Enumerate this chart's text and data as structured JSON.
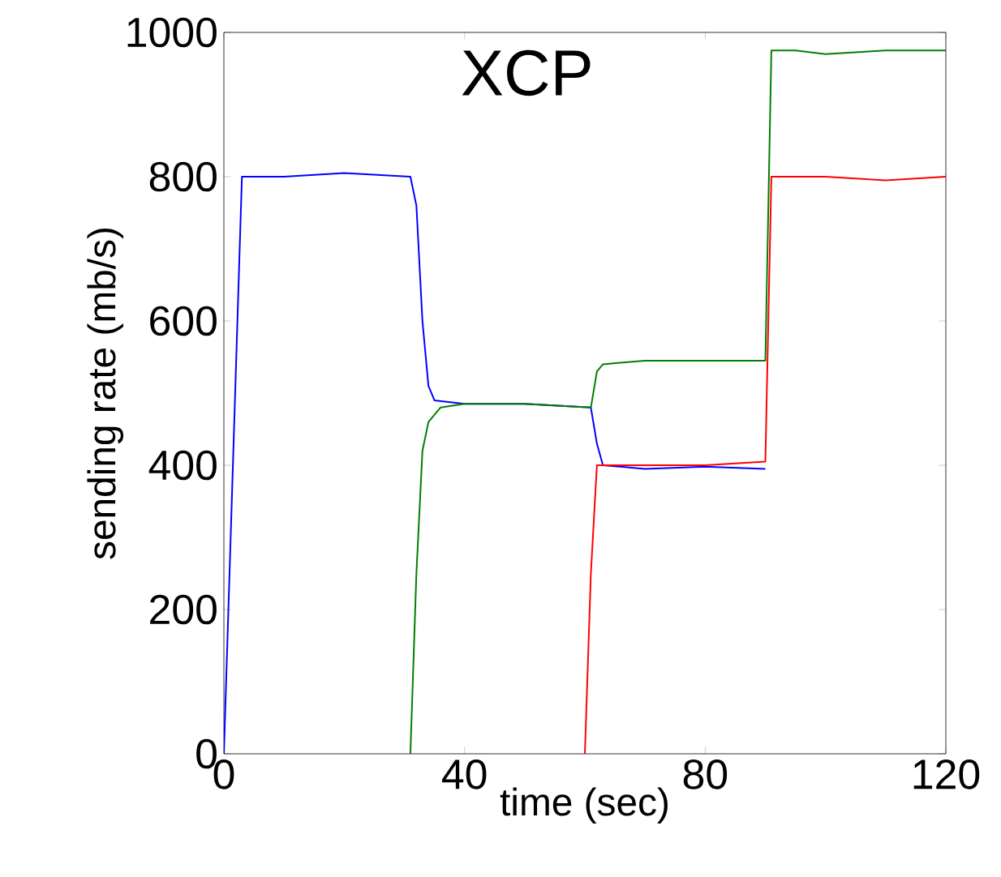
{
  "chart_data": {
    "type": "line",
    "title": "XCP",
    "xlabel": "time (sec)",
    "ylabel": "sending rate (mb/s)",
    "xlim": [
      0,
      120
    ],
    "ylim": [
      0,
      1000
    ],
    "xticks": [
      0,
      40,
      80,
      120
    ],
    "yticks": [
      0,
      200,
      400,
      600,
      800,
      1000
    ],
    "grid": false,
    "marker": "none",
    "line_style": "solid",
    "series": [
      {
        "color": "#0000ff",
        "x": [
          0,
          3,
          10,
          20,
          31,
          32,
          33,
          34,
          35,
          40,
          50,
          61,
          62,
          63,
          70,
          80,
          90
        ],
        "values": [
          0,
          800,
          800,
          805,
          800,
          760,
          600,
          510,
          490,
          485,
          485,
          480,
          430,
          400,
          395,
          398,
          395
        ]
      },
      {
        "color": "#007f00",
        "x": [
          31,
          32,
          33,
          34,
          36,
          40,
          50,
          61,
          62,
          63,
          70,
          80,
          90,
          91,
          95,
          100,
          110,
          120
        ],
        "values": [
          0,
          250,
          420,
          460,
          480,
          485,
          485,
          480,
          530,
          540,
          545,
          545,
          545,
          975,
          975,
          970,
          975,
          975
        ]
      },
      {
        "color": "#ff0000",
        "x": [
          60,
          61,
          62,
          70,
          80,
          90,
          91,
          100,
          110,
          120
        ],
        "values": [
          0,
          250,
          400,
          400,
          400,
          405,
          800,
          800,
          795,
          800
        ]
      }
    ]
  }
}
